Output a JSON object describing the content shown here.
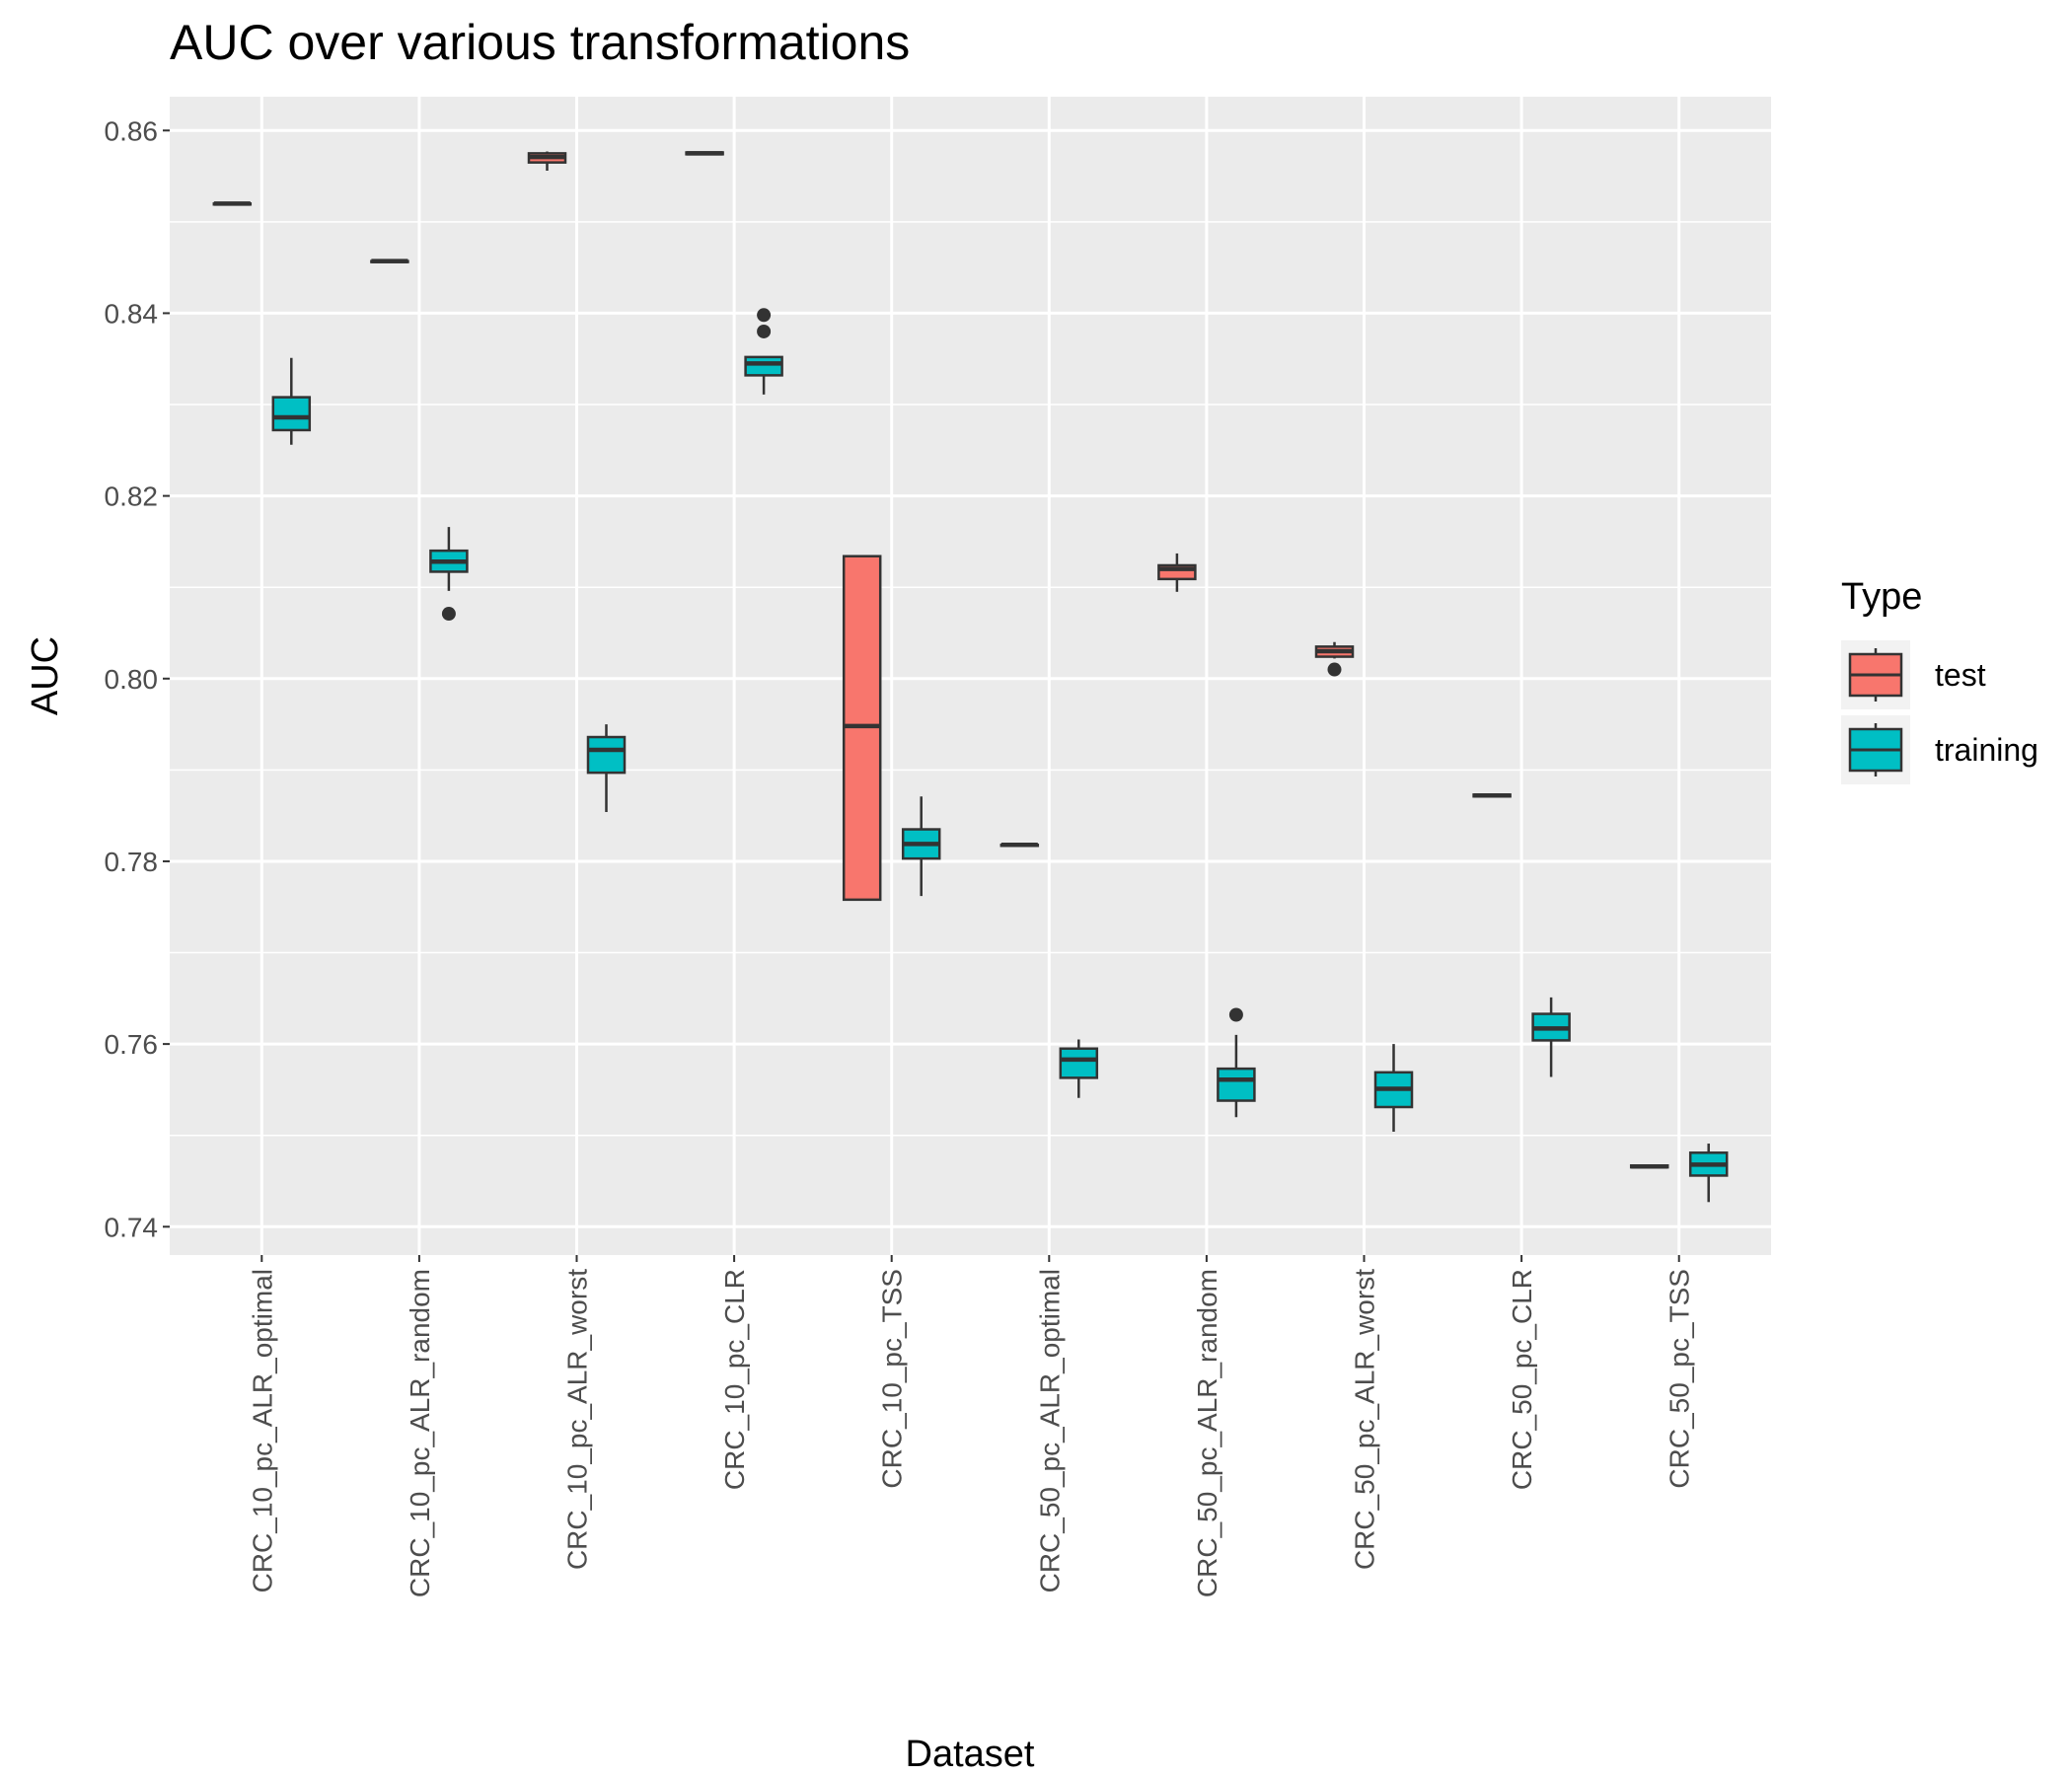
{
  "chart_data": {
    "type": "boxplot",
    "title": "AUC over various transformations",
    "x_label": "Dataset",
    "y_label": "AUC",
    "categories": [
      "CRC_10_pc_ALR_optimal",
      "CRC_10_pc_ALR_random",
      "CRC_10_pc_ALR_worst",
      "CRC_10_pc_CLR",
      "CRC_10_pc_TSS",
      "CRC_50_pc_ALR_optimal",
      "CRC_50_pc_ALR_random",
      "CRC_50_pc_ALR_worst",
      "CRC_50_pc_CLR",
      "CRC_50_pc_TSS"
    ],
    "ylim": [
      0.7369,
      0.8637
    ],
    "yticks": [
      {
        "value": 0.74,
        "label": "0.74"
      },
      {
        "value": 0.76,
        "label": "0.76"
      },
      {
        "value": 0.78,
        "label": "0.78"
      },
      {
        "value": 0.8,
        "label": "0.80"
      },
      {
        "value": 0.82,
        "label": "0.82"
      },
      {
        "value": 0.84,
        "label": "0.84"
      },
      {
        "value": 0.86,
        "label": "0.86"
      }
    ],
    "minor_yticks": [
      0.75,
      0.77,
      0.79,
      0.81,
      0.83,
      0.85
    ],
    "grid": true,
    "legend_title": "Type",
    "legend_position": "right",
    "series": [
      {
        "name": "test",
        "color": "#f8766d",
        "boxes": [
          {
            "min": 0.8518,
            "q1": 0.8519,
            "median": 0.852,
            "q3": 0.852,
            "max": 0.8521,
            "outliers": []
          },
          {
            "min": 0.8455,
            "q1": 0.8456,
            "median": 0.8457,
            "q3": 0.8457,
            "max": 0.8458,
            "outliers": []
          },
          {
            "min": 0.8556,
            "q1": 0.8565,
            "median": 0.8571,
            "q3": 0.8575,
            "max": 0.8577,
            "outliers": []
          },
          {
            "min": 0.8573,
            "q1": 0.8574,
            "median": 0.8575,
            "q3": 0.8576,
            "max": 0.8577,
            "outliers": []
          },
          {
            "min": 0.7758,
            "q1": 0.7758,
            "median": 0.7948,
            "q3": 0.8134,
            "max": 0.8134,
            "outliers": []
          },
          {
            "min": 0.7816,
            "q1": 0.7817,
            "median": 0.7818,
            "q3": 0.7818,
            "max": 0.7819,
            "outliers": []
          },
          {
            "min": 0.8095,
            "q1": 0.8109,
            "median": 0.812,
            "q3": 0.8124,
            "max": 0.8137,
            "outliers": []
          },
          {
            "min": 0.8022,
            "q1": 0.8024,
            "median": 0.803,
            "q3": 0.8035,
            "max": 0.804,
            "outliers": [
              0.801
            ]
          },
          {
            "min": 0.7871,
            "q1": 0.7871,
            "median": 0.7872,
            "q3": 0.7873,
            "max": 0.7873,
            "outliers": []
          },
          {
            "min": 0.7465,
            "q1": 0.7465,
            "median": 0.7466,
            "q3": 0.7467,
            "max": 0.7467,
            "outliers": []
          }
        ]
      },
      {
        "name": "training",
        "color": "#00bfc4",
        "boxes": [
          {
            "min": 0.8256,
            "q1": 0.8272,
            "median": 0.8286,
            "q3": 0.8308,
            "max": 0.8351,
            "outliers": []
          },
          {
            "min": 0.8096,
            "q1": 0.8117,
            "median": 0.8128,
            "q3": 0.814,
            "max": 0.8166,
            "outliers": [
              0.8071
            ]
          },
          {
            "min": 0.7854,
            "q1": 0.7897,
            "median": 0.7922,
            "q3": 0.7936,
            "max": 0.795,
            "outliers": []
          },
          {
            "min": 0.8311,
            "q1": 0.8332,
            "median": 0.8345,
            "q3": 0.8352,
            "max": 0.8353,
            "outliers": [
              0.8398,
              0.838
            ]
          },
          {
            "min": 0.7762,
            "q1": 0.7803,
            "median": 0.7819,
            "q3": 0.7835,
            "max": 0.7871,
            "outliers": []
          },
          {
            "min": 0.7541,
            "q1": 0.7563,
            "median": 0.7583,
            "q3": 0.7595,
            "max": 0.7605,
            "outliers": []
          },
          {
            "min": 0.752,
            "q1": 0.7538,
            "median": 0.7561,
            "q3": 0.7573,
            "max": 0.761,
            "outliers": [
              0.7632
            ]
          },
          {
            "min": 0.7504,
            "q1": 0.7531,
            "median": 0.7551,
            "q3": 0.7569,
            "max": 0.76,
            "outliers": []
          },
          {
            "min": 0.7564,
            "q1": 0.7604,
            "median": 0.7617,
            "q3": 0.7633,
            "max": 0.7651,
            "outliers": []
          },
          {
            "min": 0.7427,
            "q1": 0.7456,
            "median": 0.7468,
            "q3": 0.7481,
            "max": 0.7491,
            "outliers": []
          }
        ]
      }
    ]
  }
}
